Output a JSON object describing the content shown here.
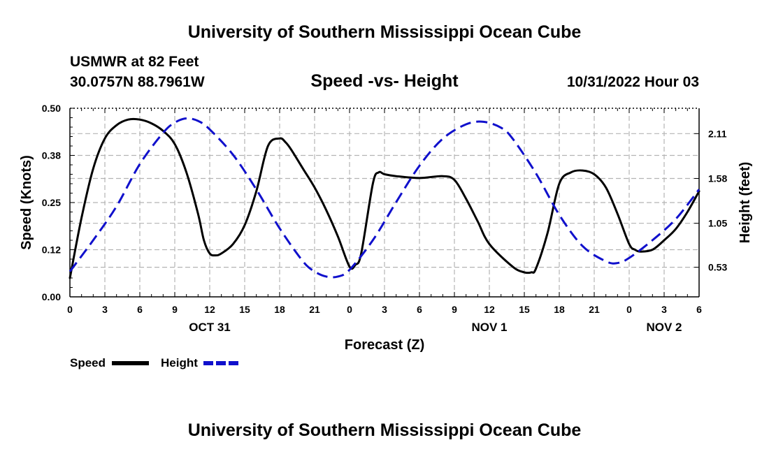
{
  "title": "University of Southern Mississippi Ocean Cube",
  "footer_title": "University of Southern Mississippi Ocean Cube",
  "station": "USMWR at 82 Feet",
  "coords": "30.0757N  88.7961W",
  "subtitle": "Speed -vs- Height",
  "timestamp": "10/31/2022 Hour 03",
  "chart_data": {
    "type": "line",
    "title": "Speed -vs- Height",
    "xlabel": "Forecast (Z)",
    "ylabel_left": "Speed (Knots)",
    "ylabel_right": "Height (feet)",
    "xlim": [
      0,
      54
    ],
    "ylim_left": [
      0,
      0.5
    ],
    "ylim_right": [
      0.18,
      2.41
    ],
    "x_ticks": [
      0,
      3,
      6,
      9,
      12,
      15,
      18,
      21,
      24,
      27,
      30,
      33,
      36,
      39,
      42,
      45,
      48,
      51,
      54
    ],
    "x_tick_labels": [
      "0",
      "3",
      "6",
      "9",
      "12",
      "15",
      "18",
      "21",
      "0",
      "3",
      "6",
      "9",
      "12",
      "15",
      "18",
      "21",
      "0",
      "3",
      "6"
    ],
    "y_left_ticks": [
      0.0,
      0.125,
      0.25,
      0.375,
      0.5
    ],
    "y_left_tick_labels": [
      "0.00",
      "0.12",
      "0.25",
      "0.38",
      "0.50"
    ],
    "y_right_ticks": [
      0.53,
      1.05,
      1.58,
      2.11
    ],
    "y_right_tick_labels": [
      "0.53",
      "1.05",
      "1.58",
      "2.11"
    ],
    "date_labels": [
      {
        "x": 12,
        "label": "OCT 31"
      },
      {
        "x": 36,
        "label": "NOV 1"
      },
      {
        "x": 51,
        "label": "NOV 2"
      }
    ],
    "grid": true,
    "series": [
      {
        "name": "Speed",
        "axis": "left",
        "color": "#000000",
        "style": "solid",
        "x": [
          0,
          1,
          2,
          3,
          4,
          5,
          6,
          7,
          8,
          9,
          10,
          11,
          11.5,
          12,
          12.5,
          13,
          14,
          15,
          16,
          17,
          18,
          18.5,
          19,
          20,
          21,
          22,
          23,
          24,
          24.5,
          25,
          26,
          26.5,
          27,
          28,
          30,
          32,
          33,
          34,
          35,
          36,
          38,
          39,
          39.6,
          40,
          41,
          42,
          43,
          44,
          45,
          46,
          47,
          48,
          48.5,
          49,
          50,
          51,
          52,
          53,
          54
        ],
        "values": [
          0.05,
          0.21,
          0.34,
          0.42,
          0.455,
          0.47,
          0.47,
          0.46,
          0.44,
          0.405,
          0.33,
          0.22,
          0.15,
          0.115,
          0.11,
          0.115,
          0.14,
          0.19,
          0.28,
          0.4,
          0.42,
          0.41,
          0.39,
          0.34,
          0.29,
          0.23,
          0.16,
          0.08,
          0.085,
          0.115,
          0.3,
          0.33,
          0.325,
          0.32,
          0.315,
          0.32,
          0.31,
          0.26,
          0.2,
          0.14,
          0.08,
          0.065,
          0.065,
          0.075,
          0.17,
          0.3,
          0.33,
          0.335,
          0.325,
          0.29,
          0.22,
          0.14,
          0.125,
          0.12,
          0.125,
          0.15,
          0.18,
          0.225,
          0.28
        ]
      },
      {
        "name": "Height",
        "axis": "right",
        "color": "#1010cc",
        "style": "dashed",
        "x": [
          0,
          2,
          4,
          6,
          8,
          9,
          10,
          11,
          12,
          14,
          16,
          18,
          20,
          21,
          22,
          23,
          24,
          26,
          28,
          30,
          32,
          34,
          35.5,
          37,
          38,
          40,
          42,
          44,
          46,
          47,
          48,
          50,
          52,
          54
        ],
        "values": [
          0.48,
          0.85,
          1.25,
          1.75,
          2.12,
          2.24,
          2.29,
          2.26,
          2.16,
          1.86,
          1.45,
          0.99,
          0.6,
          0.48,
          0.42,
          0.42,
          0.5,
          0.85,
          1.3,
          1.73,
          2.05,
          2.22,
          2.25,
          2.18,
          2.05,
          1.64,
          1.15,
          0.78,
          0.6,
          0.58,
          0.64,
          0.85,
          1.1,
          1.45
        ]
      }
    ],
    "legend": [
      {
        "label": "Speed",
        "color": "#000000",
        "style": "solid"
      },
      {
        "label": "Height",
        "color": "#1010cc",
        "style": "dashed"
      }
    ],
    "legend_position": "bottom-left"
  }
}
